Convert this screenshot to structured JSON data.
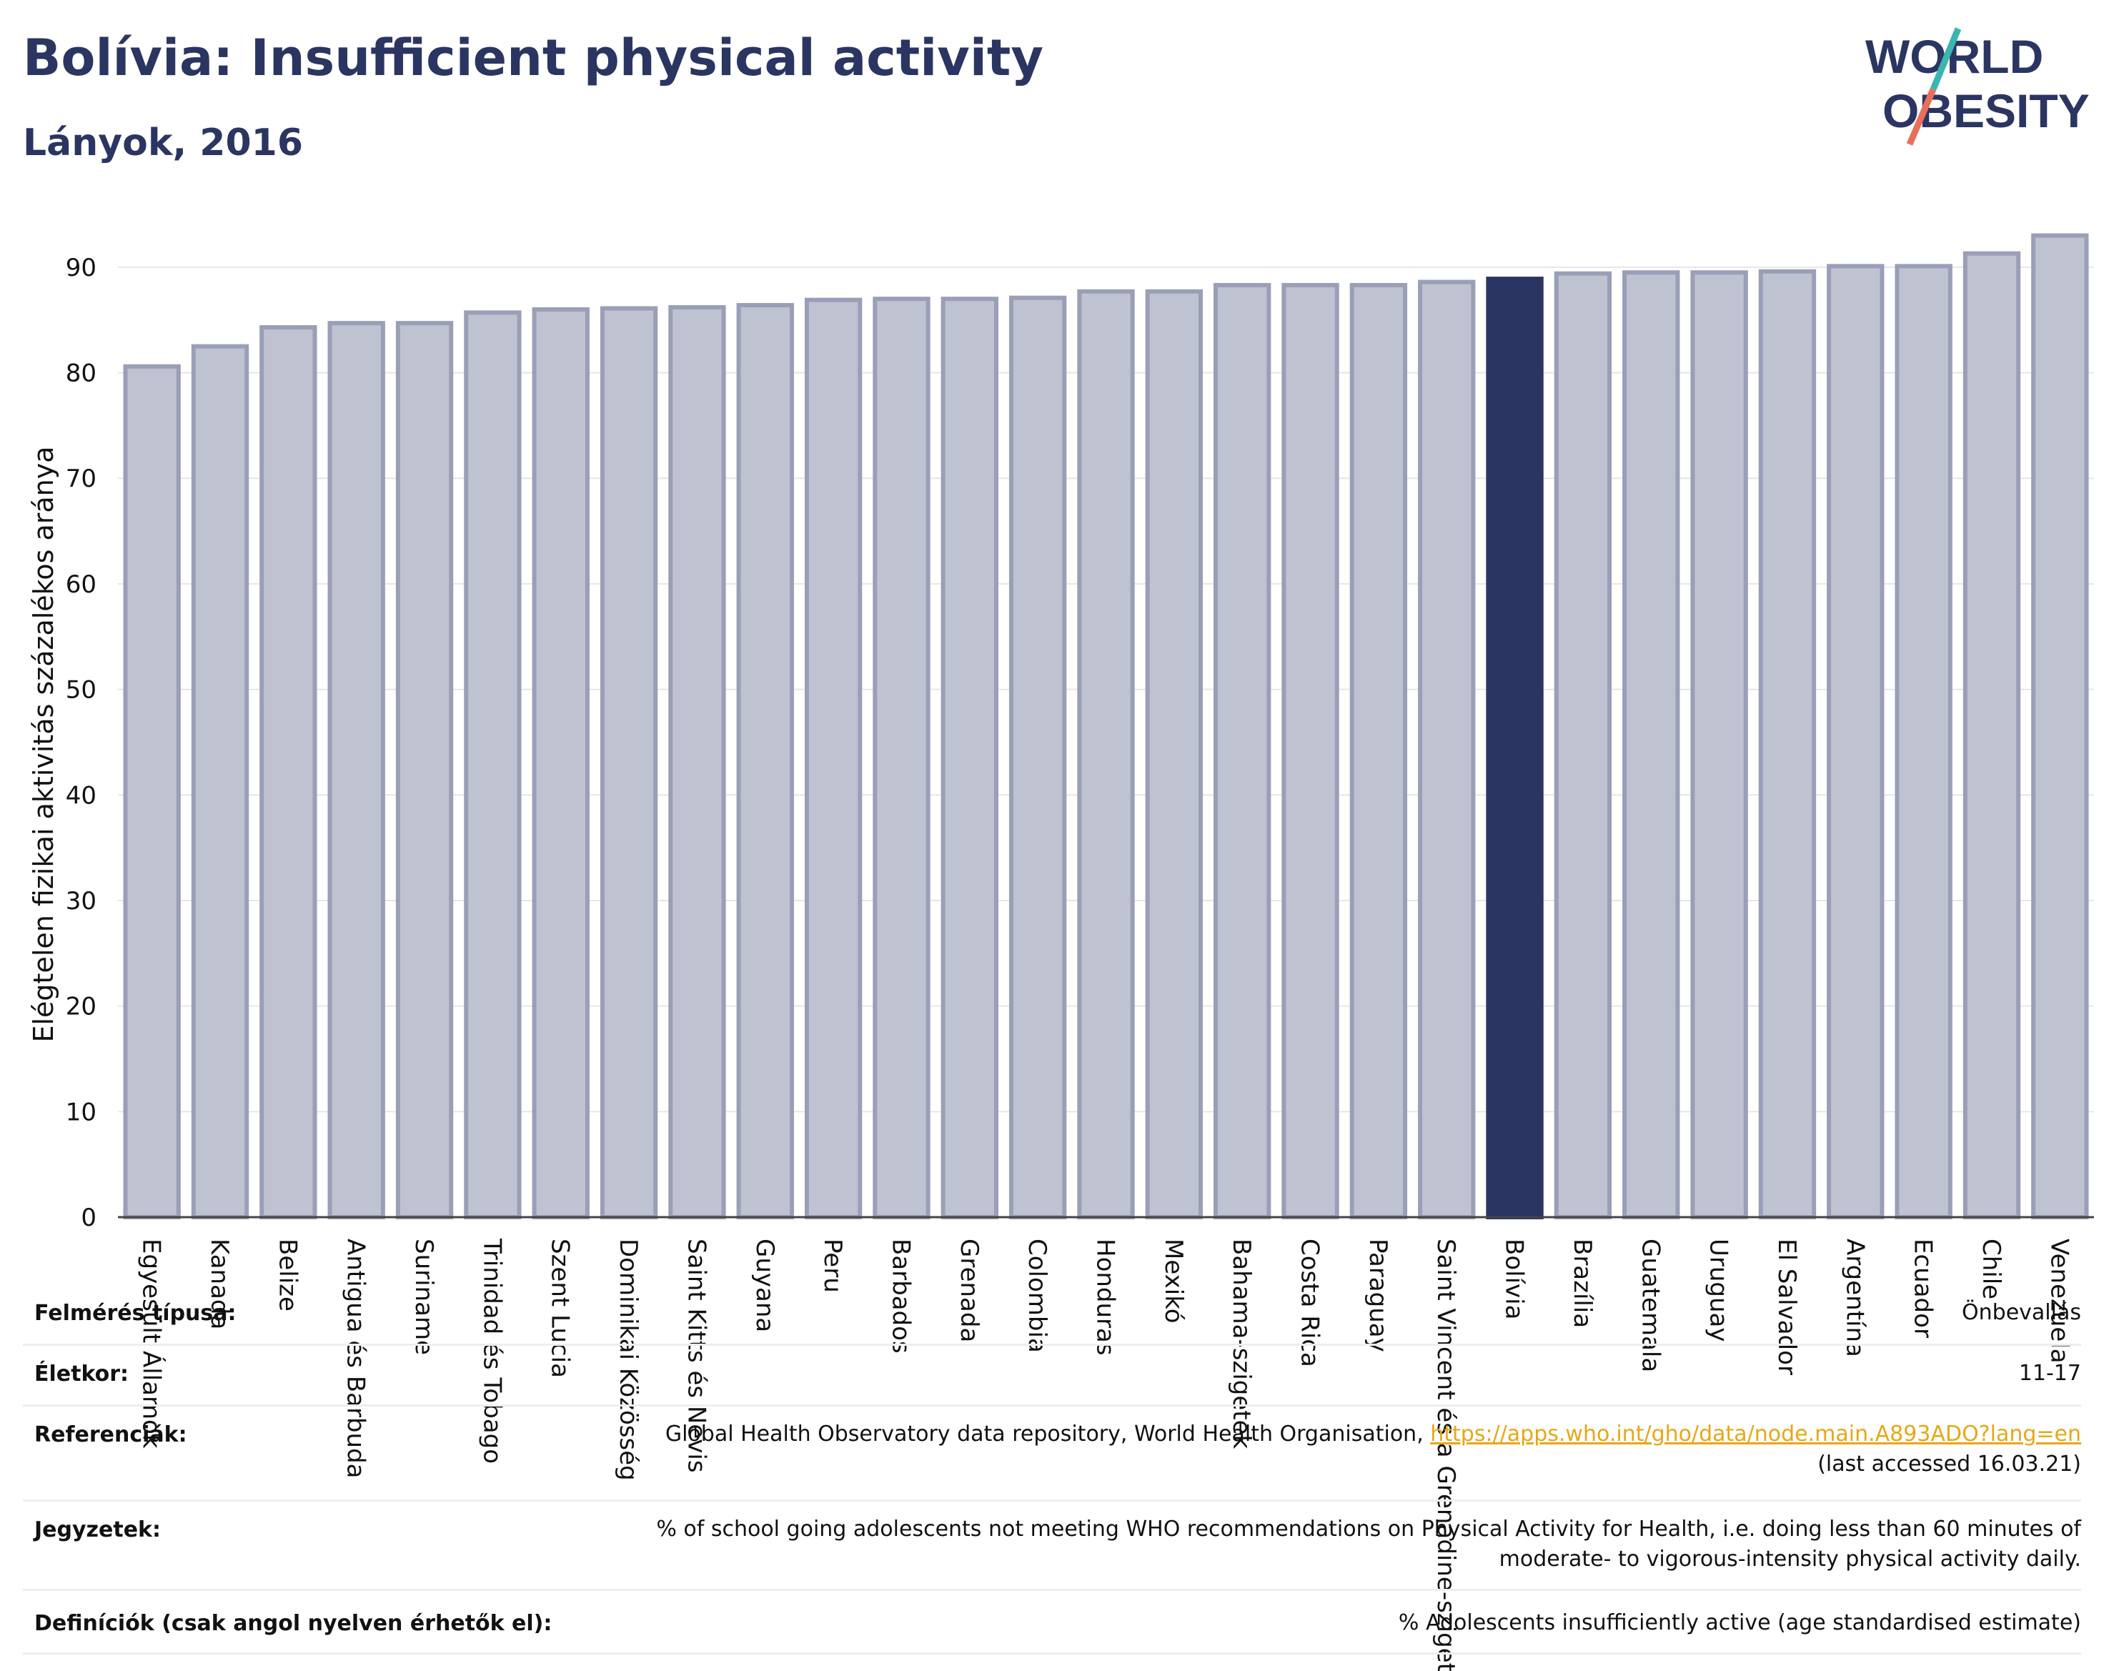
{
  "title": "Bolívia: Insufficient physical activity",
  "subtitle": "Lányok, 2016",
  "logo": {
    "line1": "WORLD",
    "line2": "OBESITY",
    "colors": {
      "text": "#2b3562",
      "slash_top": "#3ab5b0",
      "slash_bottom": "#e8705a"
    }
  },
  "colors": {
    "bar": "#bfc2d0",
    "bar_edge": "#9a9fb7",
    "highlight": "#2b3562",
    "grid": "#e6e6e6"
  },
  "chart_data": {
    "type": "bar",
    "ylabel": "Elégtelen fizikai aktivitás százalékos aránya",
    "ylim": [
      0,
      95
    ],
    "yticks": [
      0,
      10,
      20,
      30,
      40,
      50,
      60,
      70,
      80,
      90
    ],
    "highlight": "Bolívia",
    "categories": [
      "Egyesült Államok",
      "Kanada",
      "Belize",
      "Antigua és Barbuda",
      "Suriname",
      "Trinidad és Tobago",
      "Szent Lucia",
      "Dominikai Közösség",
      "Saint Kitts és Nevis",
      "Guyana",
      "Peru",
      "Barbados",
      "Grenada",
      "Colombia",
      "Honduras",
      "Mexikó",
      "Bahama-szigetek",
      "Costa Rica",
      "Paraguay",
      "Saint Vincent és a Grenadine-szigetek",
      "Bolívia",
      "Brazília",
      "Guatemala",
      "Uruguay",
      "El Salvador",
      "Argentína",
      "Ecuador",
      "Chile",
      "Venezuela"
    ],
    "values": [
      80.6,
      82.5,
      84.3,
      84.7,
      84.7,
      85.7,
      86.0,
      86.1,
      86.2,
      86.4,
      86.9,
      87.0,
      87.0,
      87.1,
      87.7,
      87.7,
      88.3,
      88.3,
      88.3,
      88.6,
      88.9,
      89.4,
      89.5,
      89.5,
      89.6,
      90.1,
      90.1,
      91.3,
      93.0
    ]
  },
  "info": [
    {
      "label": "Felmérés típusa:",
      "value": [
        "Önbevallás"
      ]
    },
    {
      "label": "Életkor:",
      "value": [
        "11-17"
      ]
    },
    {
      "label": "Referenciák:",
      "value": [
        "Global Health Observatory data repository, World Health Organisation, ",
        "(last accessed 16.03.21)"
      ],
      "link": "https://apps.who.int/gho/data/node.main.A893ADO?lang=en"
    },
    {
      "label": "Jegyzetek:",
      "value": [
        "% of school going adolescents not meeting WHO recommendations on Physical Activity for Health, i.e. doing less than 60 minutes of",
        "moderate- to vigorous-intensity physical activity daily."
      ]
    },
    {
      "label": "Definíciók (csak angol nyelven érhetők el):",
      "value": [
        "% Adolescents insufficiently active (age standardised estimate)"
      ]
    }
  ]
}
